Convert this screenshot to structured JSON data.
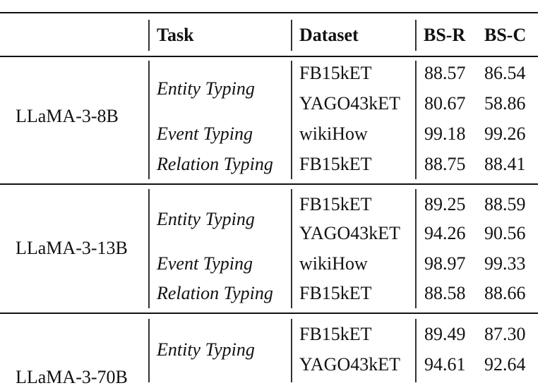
{
  "header": {
    "col_model": "",
    "col_task": "Task",
    "col_dataset": "Dataset",
    "col_bsr": "BS-R",
    "col_bsc": "BS-C"
  },
  "groups": [
    {
      "model": "LLaMA-3-8B",
      "rows": [
        {
          "task": "Entity Typing",
          "dataset": "FB15kET",
          "bsr": "88.57",
          "bsc": "86.54"
        },
        {
          "task": "",
          "dataset": "YAGO43kET",
          "bsr": "80.67",
          "bsc": "58.86"
        },
        {
          "task": "Event Typing",
          "dataset": "wikiHow",
          "bsr": "99.18",
          "bsc": "99.26"
        },
        {
          "task": "Relation Typing",
          "dataset": "FB15kET",
          "bsr": "88.75",
          "bsc": "88.41"
        }
      ]
    },
    {
      "model": "LLaMA-3-13B",
      "rows": [
        {
          "task": "Entity Typing",
          "dataset": "FB15kET",
          "bsr": "89.25",
          "bsc": "88.59"
        },
        {
          "task": "",
          "dataset": "YAGO43kET",
          "bsr": "94.26",
          "bsc": "90.56"
        },
        {
          "task": "Event Typing",
          "dataset": "wikiHow",
          "bsr": "98.97",
          "bsc": "99.33"
        },
        {
          "task": "Relation Typing",
          "dataset": "FB15kET",
          "bsr": "88.58",
          "bsc": "88.66"
        }
      ]
    },
    {
      "model": "LLaMA-3-70B",
      "rows": [
        {
          "task": "Entity Typing",
          "dataset": "FB15kET",
          "bsr": "89.49",
          "bsc": "87.30"
        },
        {
          "task": "",
          "dataset": "YAGO43kET",
          "bsr": "94.61",
          "bsc": "92.64"
        }
      ]
    }
  ]
}
